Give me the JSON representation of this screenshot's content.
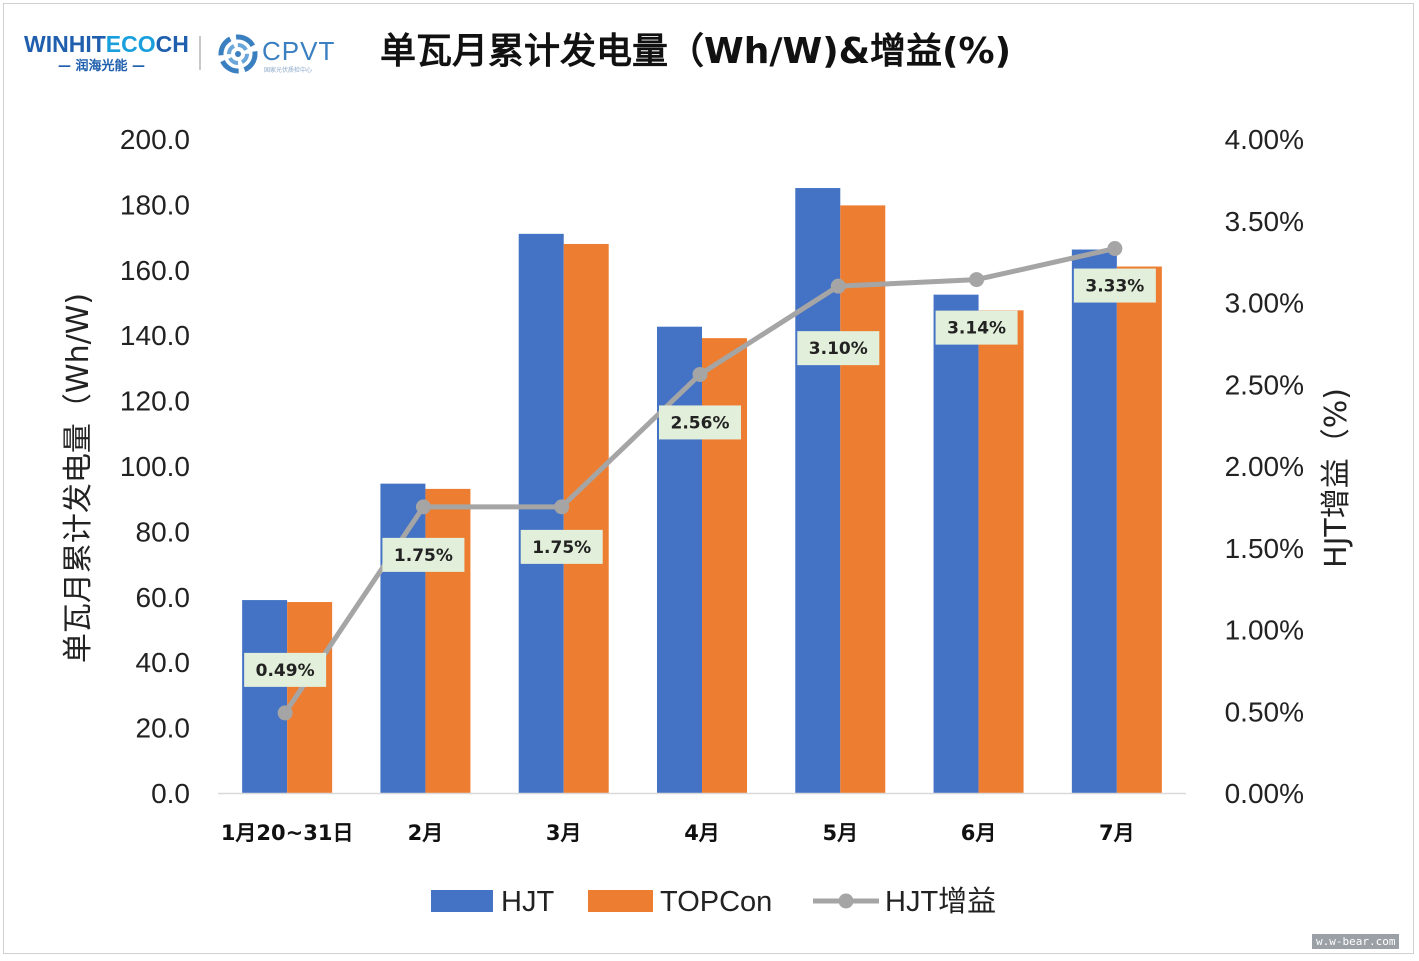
{
  "header": {
    "winhitech_logo": {
      "main_left": "WINHIT",
      "main_mid": "ECO",
      "main_right": "CH",
      "sub": "— 润海光能 —"
    },
    "cpvt_logo": {
      "text": "CPVT",
      "tiny": "国家光伏质检中心"
    },
    "title": "单瓦月累计发电量（Wh/W)&增益(%)"
  },
  "watermark": "w.w-bear.com",
  "chart_data": {
    "type": "bar",
    "title": "单瓦月累计发电量（Wh/W)&增益(%)",
    "categories": [
      "1月20~31日",
      "2月",
      "3月",
      "4月",
      "5月",
      "6月",
      "7月"
    ],
    "ylabel": "单瓦月累计发电量（Wh/W)",
    "y2label": "HJT增益（%)",
    "ylim": [
      0,
      200
    ],
    "y2lim": [
      0,
      4
    ],
    "yticks": [
      "0.0",
      "20.0",
      "40.0",
      "60.0",
      "80.0",
      "100.0",
      "120.0",
      "140.0",
      "160.0",
      "180.0",
      "200.0"
    ],
    "y2ticks": [
      "0.00%",
      "0.50%",
      "1.00%",
      "1.50%",
      "2.00%",
      "2.50%",
      "3.00%",
      "3.50%",
      "4.00%"
    ],
    "grid": false,
    "legend_position": "bottom",
    "series": [
      {
        "name": "HJT",
        "type": "bar",
        "axis": "left",
        "color": "#4472c4",
        "values": [
          59.0,
          94.6,
          171.0,
          142.6,
          185.0,
          152.4,
          166.2
        ]
      },
      {
        "name": "TOPCon",
        "type": "bar",
        "axis": "left",
        "color": "#ed7d31",
        "values": [
          58.4,
          93.0,
          167.9,
          139.1,
          179.7,
          147.6,
          161.0
        ]
      },
      {
        "name": "HJT增益",
        "type": "line",
        "axis": "right",
        "color": "#a5a5a5",
        "values": [
          0.49,
          1.75,
          1.75,
          2.56,
          3.1,
          3.14,
          3.33
        ],
        "labels": [
          "0.49%",
          "1.75%",
          "1.75%",
          "2.56%",
          "3.10%",
          "3.14%",
          "3.33%"
        ]
      }
    ]
  }
}
